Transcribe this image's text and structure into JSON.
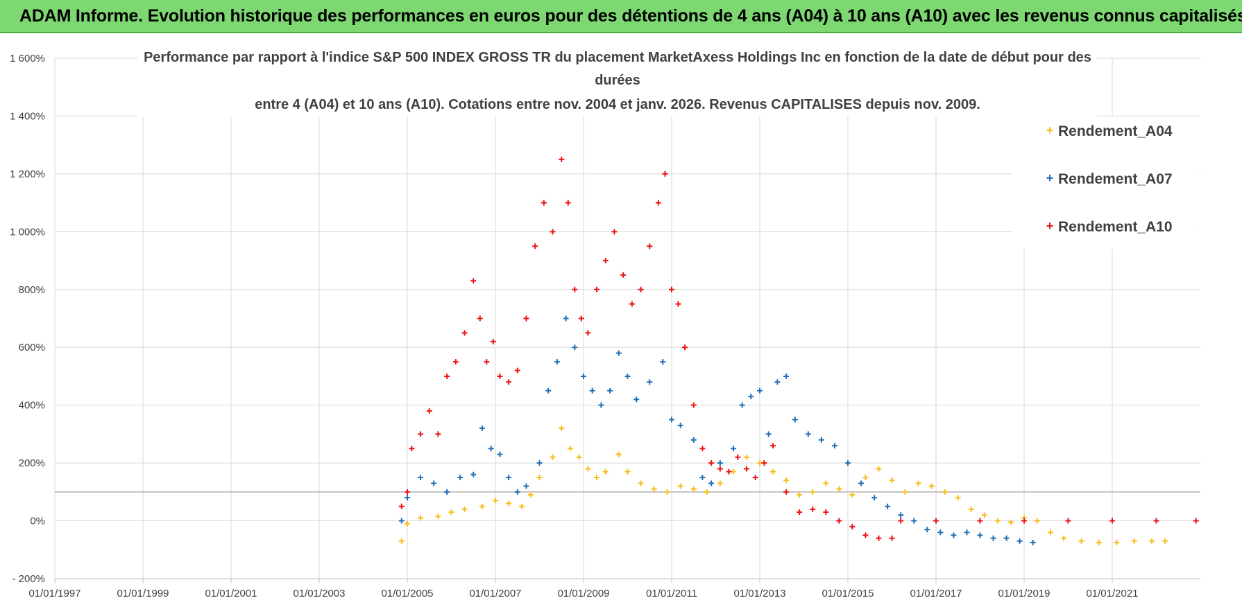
{
  "header": {
    "title": "ADAM Informe. Evolution historique des performances en euros pour des détentions de 4 ans (A04) à 10 ans (A10) avec les revenus connus capitalisés"
  },
  "colors": {
    "banner": "#7dd872",
    "A04": "#f7bd18",
    "A07": "#1f6fb8",
    "A10": "#ee1111",
    "grid": "#d9d9d9"
  },
  "chart_data": {
    "type": "scatter",
    "title": [
      "Performance par rapport à l'indice S&P 500 INDEX GROSS TR  du placement MarketAxess Holdings Inc en fonction de la date de début pour des",
      "durées",
      "entre 4 (A04) et 10 ans (A10). Cotations entre nov. 2004 et janv. 2026. Revenus CAPITALISES depuis nov. 2009."
    ],
    "xlabel": "",
    "ylabel": "",
    "x_unit": "year",
    "xlim": [
      1997.0,
      2023.0
    ],
    "ylim": [
      -200,
      1600
    ],
    "y_ticks": [
      -200,
      0,
      200,
      400,
      600,
      800,
      1000,
      1200,
      1400,
      1600
    ],
    "y_tick_labels": [
      "- 200%",
      "0%",
      "200%",
      "400%",
      "600%",
      "800%",
      "1 000%",
      "1 200%",
      "1 400%",
      "1 600%"
    ],
    "x_ticks": [
      1997,
      1999,
      2001,
      2003,
      2005,
      2007,
      2009,
      2011,
      2013,
      2015,
      2017,
      2019,
      2021
    ],
    "x_tick_labels": [
      "01/01/1997",
      "01/01/1999",
      "01/01/2001",
      "01/01/2003",
      "01/01/2005",
      "01/01/2007",
      "01/01/2009",
      "01/01/2011",
      "01/01/2013",
      "01/01/2015",
      "01/01/2017",
      "01/01/2019",
      "01/01/2021"
    ],
    "reference_line_y": 100,
    "legend_position": "top-right",
    "series": [
      {
        "name": "Rendement_A04",
        "key": "A04",
        "x": [
          2004.87,
          2005.0,
          2005.3,
          2005.7,
          2006.0,
          2006.3,
          2006.7,
          2007.0,
          2007.3,
          2007.6,
          2007.8,
          2008.0,
          2008.3,
          2008.5,
          2008.7,
          2008.9,
          2009.1,
          2009.3,
          2009.5,
          2009.8,
          2010.0,
          2010.3,
          2010.6,
          2010.9,
          2011.2,
          2011.5,
          2011.8,
          2012.1,
          2012.4,
          2012.7,
          2013.0,
          2013.3,
          2013.6,
          2013.9,
          2014.2,
          2014.5,
          2014.8,
          2015.1,
          2015.4,
          2015.7,
          2016.0,
          2016.3,
          2016.6,
          2016.9,
          2017.2,
          2017.5,
          2017.8,
          2018.1,
          2018.4,
          2018.7,
          2019.0,
          2019.3,
          2019.6,
          2019.9,
          2020.3,
          2020.7,
          2021.1,
          2021.5,
          2021.9,
          2022.2
        ],
        "y": [
          -70,
          -10,
          10,
          15,
          30,
          40,
          50,
          70,
          60,
          50,
          90,
          150,
          220,
          320,
          250,
          220,
          180,
          150,
          170,
          230,
          170,
          130,
          110,
          100,
          120,
          110,
          100,
          130,
          170,
          220,
          200,
          170,
          140,
          90,
          100,
          130,
          110,
          90,
          150,
          180,
          140,
          100,
          130,
          120,
          100,
          80,
          40,
          20,
          0,
          -5,
          10,
          0,
          -40,
          -60,
          -70,
          -75,
          -75,
          -70,
          -70,
          -70
        ]
      },
      {
        "name": "Rendement_A07",
        "key": "A07",
        "x": [
          2004.87,
          2005.0,
          2005.3,
          2005.6,
          2005.9,
          2006.2,
          2006.5,
          2006.7,
          2006.9,
          2007.1,
          2007.3,
          2007.5,
          2007.7,
          2008.0,
          2008.2,
          2008.4,
          2008.6,
          2008.8,
          2009.0,
          2009.2,
          2009.4,
          2009.6,
          2009.8,
          2010.0,
          2010.2,
          2010.5,
          2010.8,
          2011.0,
          2011.2,
          2011.5,
          2011.7,
          2011.9,
          2012.1,
          2012.4,
          2012.6,
          2012.8,
          2013.0,
          2013.2,
          2013.4,
          2013.6,
          2013.8,
          2014.1,
          2014.4,
          2014.7,
          2015.0,
          2015.3,
          2015.6,
          2015.9,
          2016.2,
          2016.5,
          2016.8,
          2017.1,
          2017.4,
          2017.7,
          2018.0,
          2018.3,
          2018.6,
          2018.9,
          2019.2
        ],
        "y": [
          0,
          80,
          150,
          130,
          100,
          150,
          160,
          320,
          250,
          230,
          150,
          100,
          120,
          200,
          450,
          550,
          700,
          600,
          500,
          450,
          400,
          450,
          580,
          500,
          420,
          480,
          550,
          350,
          330,
          280,
          150,
          130,
          200,
          250,
          400,
          430,
          450,
          300,
          480,
          500,
          350,
          300,
          280,
          260,
          200,
          130,
          80,
          50,
          20,
          0,
          -30,
          -40,
          -50,
          -40,
          -50,
          -60,
          -60,
          -70,
          -75
        ]
      },
      {
        "name": "Rendement_A10",
        "key": "A10",
        "x": [
          2004.87,
          2005.0,
          2005.1,
          2005.3,
          2005.5,
          2005.7,
          2005.9,
          2006.1,
          2006.3,
          2006.5,
          2006.65,
          2006.8,
          2006.95,
          2007.1,
          2007.3,
          2007.5,
          2007.7,
          2007.9,
          2008.1,
          2008.3,
          2008.5,
          2008.65,
          2008.8,
          2008.95,
          2009.1,
          2009.3,
          2009.5,
          2009.7,
          2009.9,
          2010.1,
          2010.3,
          2010.5,
          2010.7,
          2010.85,
          2011.0,
          2011.15,
          2011.3,
          2011.5,
          2011.7,
          2011.9,
          2012.1,
          2012.3,
          2012.5,
          2012.7,
          2012.9,
          2013.1,
          2013.3,
          2013.6,
          2013.9,
          2014.2,
          2014.5,
          2014.8,
          2015.1,
          2015.4,
          2015.7,
          2016.0,
          2016.2,
          2017.0,
          2018.0,
          2019.0,
          2020.0,
          2021.0,
          2022.0,
          2022.9
        ],
        "y": [
          50,
          100,
          250,
          300,
          380,
          300,
          500,
          550,
          650,
          830,
          700,
          550,
          620,
          500,
          480,
          520,
          700,
          950,
          1100,
          1000,
          1250,
          1100,
          800,
          700,
          650,
          800,
          900,
          1000,
          850,
          750,
          800,
          950,
          1100,
          1200,
          800,
          750,
          600,
          400,
          250,
          200,
          180,
          170,
          220,
          180,
          150,
          200,
          260,
          100,
          30,
          40,
          30,
          0,
          -20,
          -50,
          -60,
          -60,
          0,
          0,
          0,
          0,
          0,
          0,
          0,
          0
        ]
      }
    ]
  }
}
